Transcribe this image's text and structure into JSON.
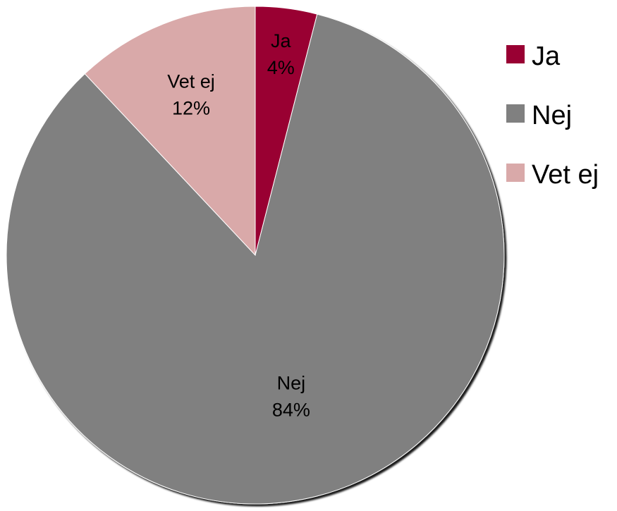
{
  "chart_data": {
    "type": "pie",
    "title": "",
    "slices": [
      {
        "label": "Ja",
        "value": 4,
        "value_label": "4%",
        "color": "#990033"
      },
      {
        "label": "Nej",
        "value": 84,
        "value_label": "84%",
        "color": "#808080"
      },
      {
        "label": "Vet ej",
        "value": 12,
        "value_label": "12%",
        "color": "#D9A9A9"
      }
    ],
    "legend": {
      "placement": "right",
      "entries": [
        "Ja",
        "Nej",
        "Vet ej"
      ]
    }
  }
}
